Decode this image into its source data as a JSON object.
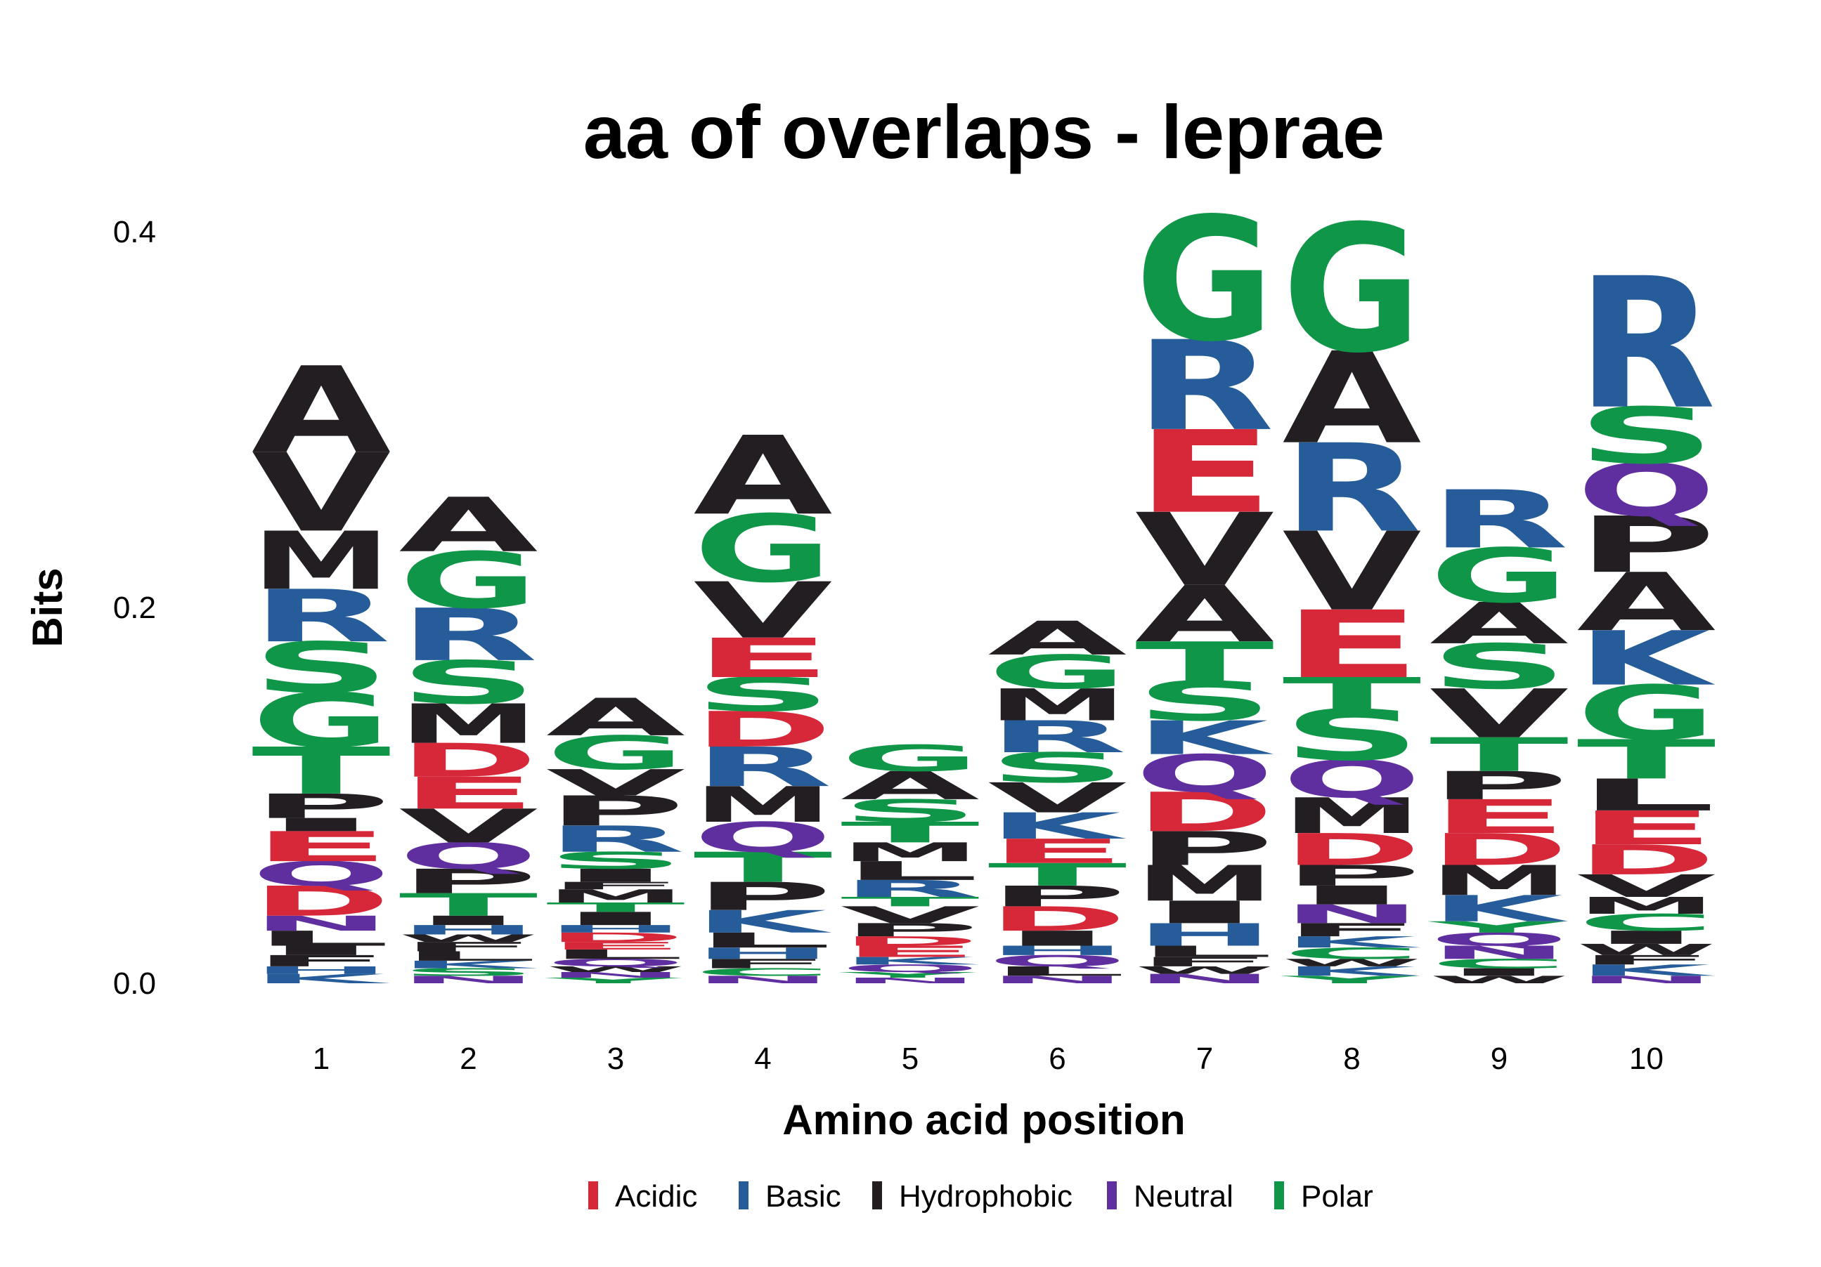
{
  "chart_data": {
    "type": "sequence-logo",
    "title": "aa of overlaps - leprae",
    "xlabel": "Amino acid position",
    "ylabel": "Bits",
    "ylim": [
      0,
      0.4
    ],
    "y_ticks": [
      "0.0",
      "0.2",
      "0.4"
    ],
    "positions": [
      "1",
      "2",
      "3",
      "4",
      "5",
      "6",
      "7",
      "8",
      "9",
      "10"
    ],
    "color_scheme": {
      "Acidic": "#d62839",
      "Basic": "#255c99",
      "Hydrophobic": "#221e22",
      "Neutral": "#5f2fa0",
      "Polar": "#109648"
    },
    "residue_class": {
      "D": "Acidic",
      "E": "Acidic",
      "H": "Basic",
      "K": "Basic",
      "R": "Basic",
      "A": "Hydrophobic",
      "F": "Hydrophobic",
      "I": "Hydrophobic",
      "L": "Hydrophobic",
      "M": "Hydrophobic",
      "P": "Hydrophobic",
      "V": "Hydrophobic",
      "W": "Hydrophobic",
      "N": "Neutral",
      "Q": "Neutral",
      "C": "Polar",
      "G": "Polar",
      "S": "Polar",
      "T": "Polar",
      "Y": "Polar"
    },
    "legend": [
      "Acidic",
      "Basic",
      "Hydrophobic",
      "Neutral",
      "Polar"
    ],
    "stacks": [
      [
        [
          "K",
          0.005
        ],
        [
          "H",
          0.004
        ],
        [
          "F",
          0.006
        ],
        [
          "I",
          0.005
        ],
        [
          "L",
          0.008
        ],
        [
          "N",
          0.008
        ],
        [
          "D",
          0.016
        ],
        [
          "Q",
          0.013
        ],
        [
          "E",
          0.016
        ],
        [
          "I",
          0.007
        ],
        [
          "P",
          0.013
        ],
        [
          "T",
          0.025
        ],
        [
          "G",
          0.029
        ],
        [
          "S",
          0.027
        ],
        [
          "R",
          0.028
        ],
        [
          "M",
          0.031
        ],
        [
          "V",
          0.042
        ],
        [
          "A",
          0.046
        ]
      ],
      [
        [
          "N",
          0.004
        ],
        [
          "S",
          0.004
        ],
        [
          "K",
          0.004
        ],
        [
          "L",
          0.005
        ],
        [
          "F",
          0.005
        ],
        [
          "W",
          0.004
        ],
        [
          "H",
          0.005
        ],
        [
          "I",
          0.005
        ],
        [
          "T",
          0.012
        ],
        [
          "P",
          0.013
        ],
        [
          "Q",
          0.014
        ],
        [
          "V",
          0.018
        ],
        [
          "E",
          0.017
        ],
        [
          "D",
          0.018
        ],
        [
          "M",
          0.021
        ],
        [
          "S",
          0.023
        ],
        [
          "R",
          0.028
        ],
        [
          "G",
          0.03
        ],
        [
          "A",
          0.029
        ]
      ],
      [
        [
          "Y",
          0.003
        ],
        [
          "N",
          0.003
        ],
        [
          "W",
          0.003
        ],
        [
          "Q",
          0.004
        ],
        [
          "L",
          0.005
        ],
        [
          "E",
          0.004
        ],
        [
          "D",
          0.005
        ],
        [
          "H",
          0.004
        ],
        [
          "I",
          0.007
        ],
        [
          "T",
          0.005
        ],
        [
          "M",
          0.007
        ],
        [
          "F",
          0.004
        ],
        [
          "I",
          0.007
        ],
        [
          "S",
          0.009
        ],
        [
          "R",
          0.014
        ],
        [
          "P",
          0.016
        ],
        [
          "V",
          0.014
        ],
        [
          "G",
          0.018
        ],
        [
          "A",
          0.02
        ]
      ],
      [
        [
          "N",
          0.004
        ],
        [
          "C",
          0.004
        ],
        [
          "F",
          0.005
        ],
        [
          "H",
          0.006
        ],
        [
          "L",
          0.008
        ],
        [
          "K",
          0.012
        ],
        [
          "P",
          0.015
        ],
        [
          "T",
          0.016
        ],
        [
          "Q",
          0.016
        ],
        [
          "M",
          0.019
        ],
        [
          "R",
          0.021
        ],
        [
          "D",
          0.019
        ],
        [
          "S",
          0.018
        ],
        [
          "E",
          0.021
        ],
        [
          "V",
          0.03
        ],
        [
          "G",
          0.036
        ],
        [
          "A",
          0.042
        ]
      ],
      [
        [
          "N",
          0.003
        ],
        [
          "Y",
          0.003
        ],
        [
          "Q",
          0.004
        ],
        [
          "K",
          0.004
        ],
        [
          "E",
          0.006
        ],
        [
          "D",
          0.005
        ],
        [
          "P",
          0.007
        ],
        [
          "V",
          0.009
        ],
        [
          "T",
          0.005
        ],
        [
          "R",
          0.009
        ],
        [
          "L",
          0.01
        ],
        [
          "M",
          0.01
        ],
        [
          "T",
          0.011
        ],
        [
          "S",
          0.012
        ],
        [
          "A",
          0.015
        ],
        [
          "G",
          0.014
        ]
      ],
      [
        [
          "N",
          0.004
        ],
        [
          "L",
          0.005
        ],
        [
          "Q",
          0.006
        ],
        [
          "H",
          0.005
        ],
        [
          "I",
          0.008
        ],
        [
          "D",
          0.013
        ],
        [
          "P",
          0.011
        ],
        [
          "T",
          0.012
        ],
        [
          "E",
          0.013
        ],
        [
          "K",
          0.014
        ],
        [
          "V",
          0.016
        ],
        [
          "S",
          0.016
        ],
        [
          "R",
          0.017
        ],
        [
          "M",
          0.017
        ],
        [
          "G",
          0.018
        ],
        [
          "A",
          0.018
        ]
      ],
      [
        [
          "N",
          0.005
        ],
        [
          "W",
          0.004
        ],
        [
          "F",
          0.005
        ],
        [
          "L",
          0.006
        ],
        [
          "H",
          0.012
        ],
        [
          "I",
          0.012
        ],
        [
          "M",
          0.019
        ],
        [
          "P",
          0.018
        ],
        [
          "D",
          0.021
        ],
        [
          "Q",
          0.02
        ],
        [
          "K",
          0.018
        ],
        [
          "S",
          0.021
        ],
        [
          "T",
          0.021
        ],
        [
          "A",
          0.03
        ],
        [
          "V",
          0.039
        ],
        [
          "E",
          0.044
        ],
        [
          "R",
          0.048
        ],
        [
          "G",
          0.066
        ]
      ],
      [
        [
          "Y",
          0.004
        ],
        [
          "K",
          0.005
        ],
        [
          "W",
          0.004
        ],
        [
          "C",
          0.006
        ],
        [
          "K",
          0.006
        ],
        [
          "F",
          0.007
        ],
        [
          "N",
          0.01
        ],
        [
          "I",
          0.01
        ],
        [
          "P",
          0.011
        ],
        [
          "D",
          0.017
        ],
        [
          "M",
          0.019
        ],
        [
          "Q",
          0.02
        ],
        [
          "S",
          0.027
        ],
        [
          "T",
          0.017
        ],
        [
          "E",
          0.036
        ],
        [
          "V",
          0.042
        ],
        [
          "R",
          0.047
        ],
        [
          "A",
          0.049
        ],
        [
          "G",
          0.068
        ]
      ],
      [
        [
          "W",
          0.004
        ],
        [
          "I",
          0.004
        ],
        [
          "C",
          0.005
        ],
        [
          "N",
          0.007
        ],
        [
          "Q",
          0.007
        ],
        [
          "Y",
          0.006
        ],
        [
          "K",
          0.014
        ],
        [
          "M",
          0.016
        ],
        [
          "D",
          0.017
        ],
        [
          "E",
          0.018
        ],
        [
          "P",
          0.015
        ],
        [
          "T",
          0.018
        ],
        [
          "V",
          0.026
        ],
        [
          "S",
          0.024
        ],
        [
          "A",
          0.022
        ],
        [
          "G",
          0.029
        ],
        [
          "R",
          0.031
        ]
      ],
      [
        [
          "N",
          0.004
        ],
        [
          "K",
          0.006
        ],
        [
          "F",
          0.005
        ],
        [
          "W",
          0.006
        ],
        [
          "I",
          0.007
        ],
        [
          "C",
          0.009
        ],
        [
          "M",
          0.009
        ],
        [
          "V",
          0.012
        ],
        [
          "D",
          0.016
        ],
        [
          "E",
          0.018
        ],
        [
          "L",
          0.017
        ],
        [
          "T",
          0.021
        ],
        [
          "G",
          0.029
        ],
        [
          "K",
          0.029
        ],
        [
          "A",
          0.031
        ],
        [
          "P",
          0.03
        ],
        [
          "Q",
          0.028
        ],
        [
          "S",
          0.03
        ],
        [
          "R",
          0.07
        ]
      ]
    ]
  }
}
